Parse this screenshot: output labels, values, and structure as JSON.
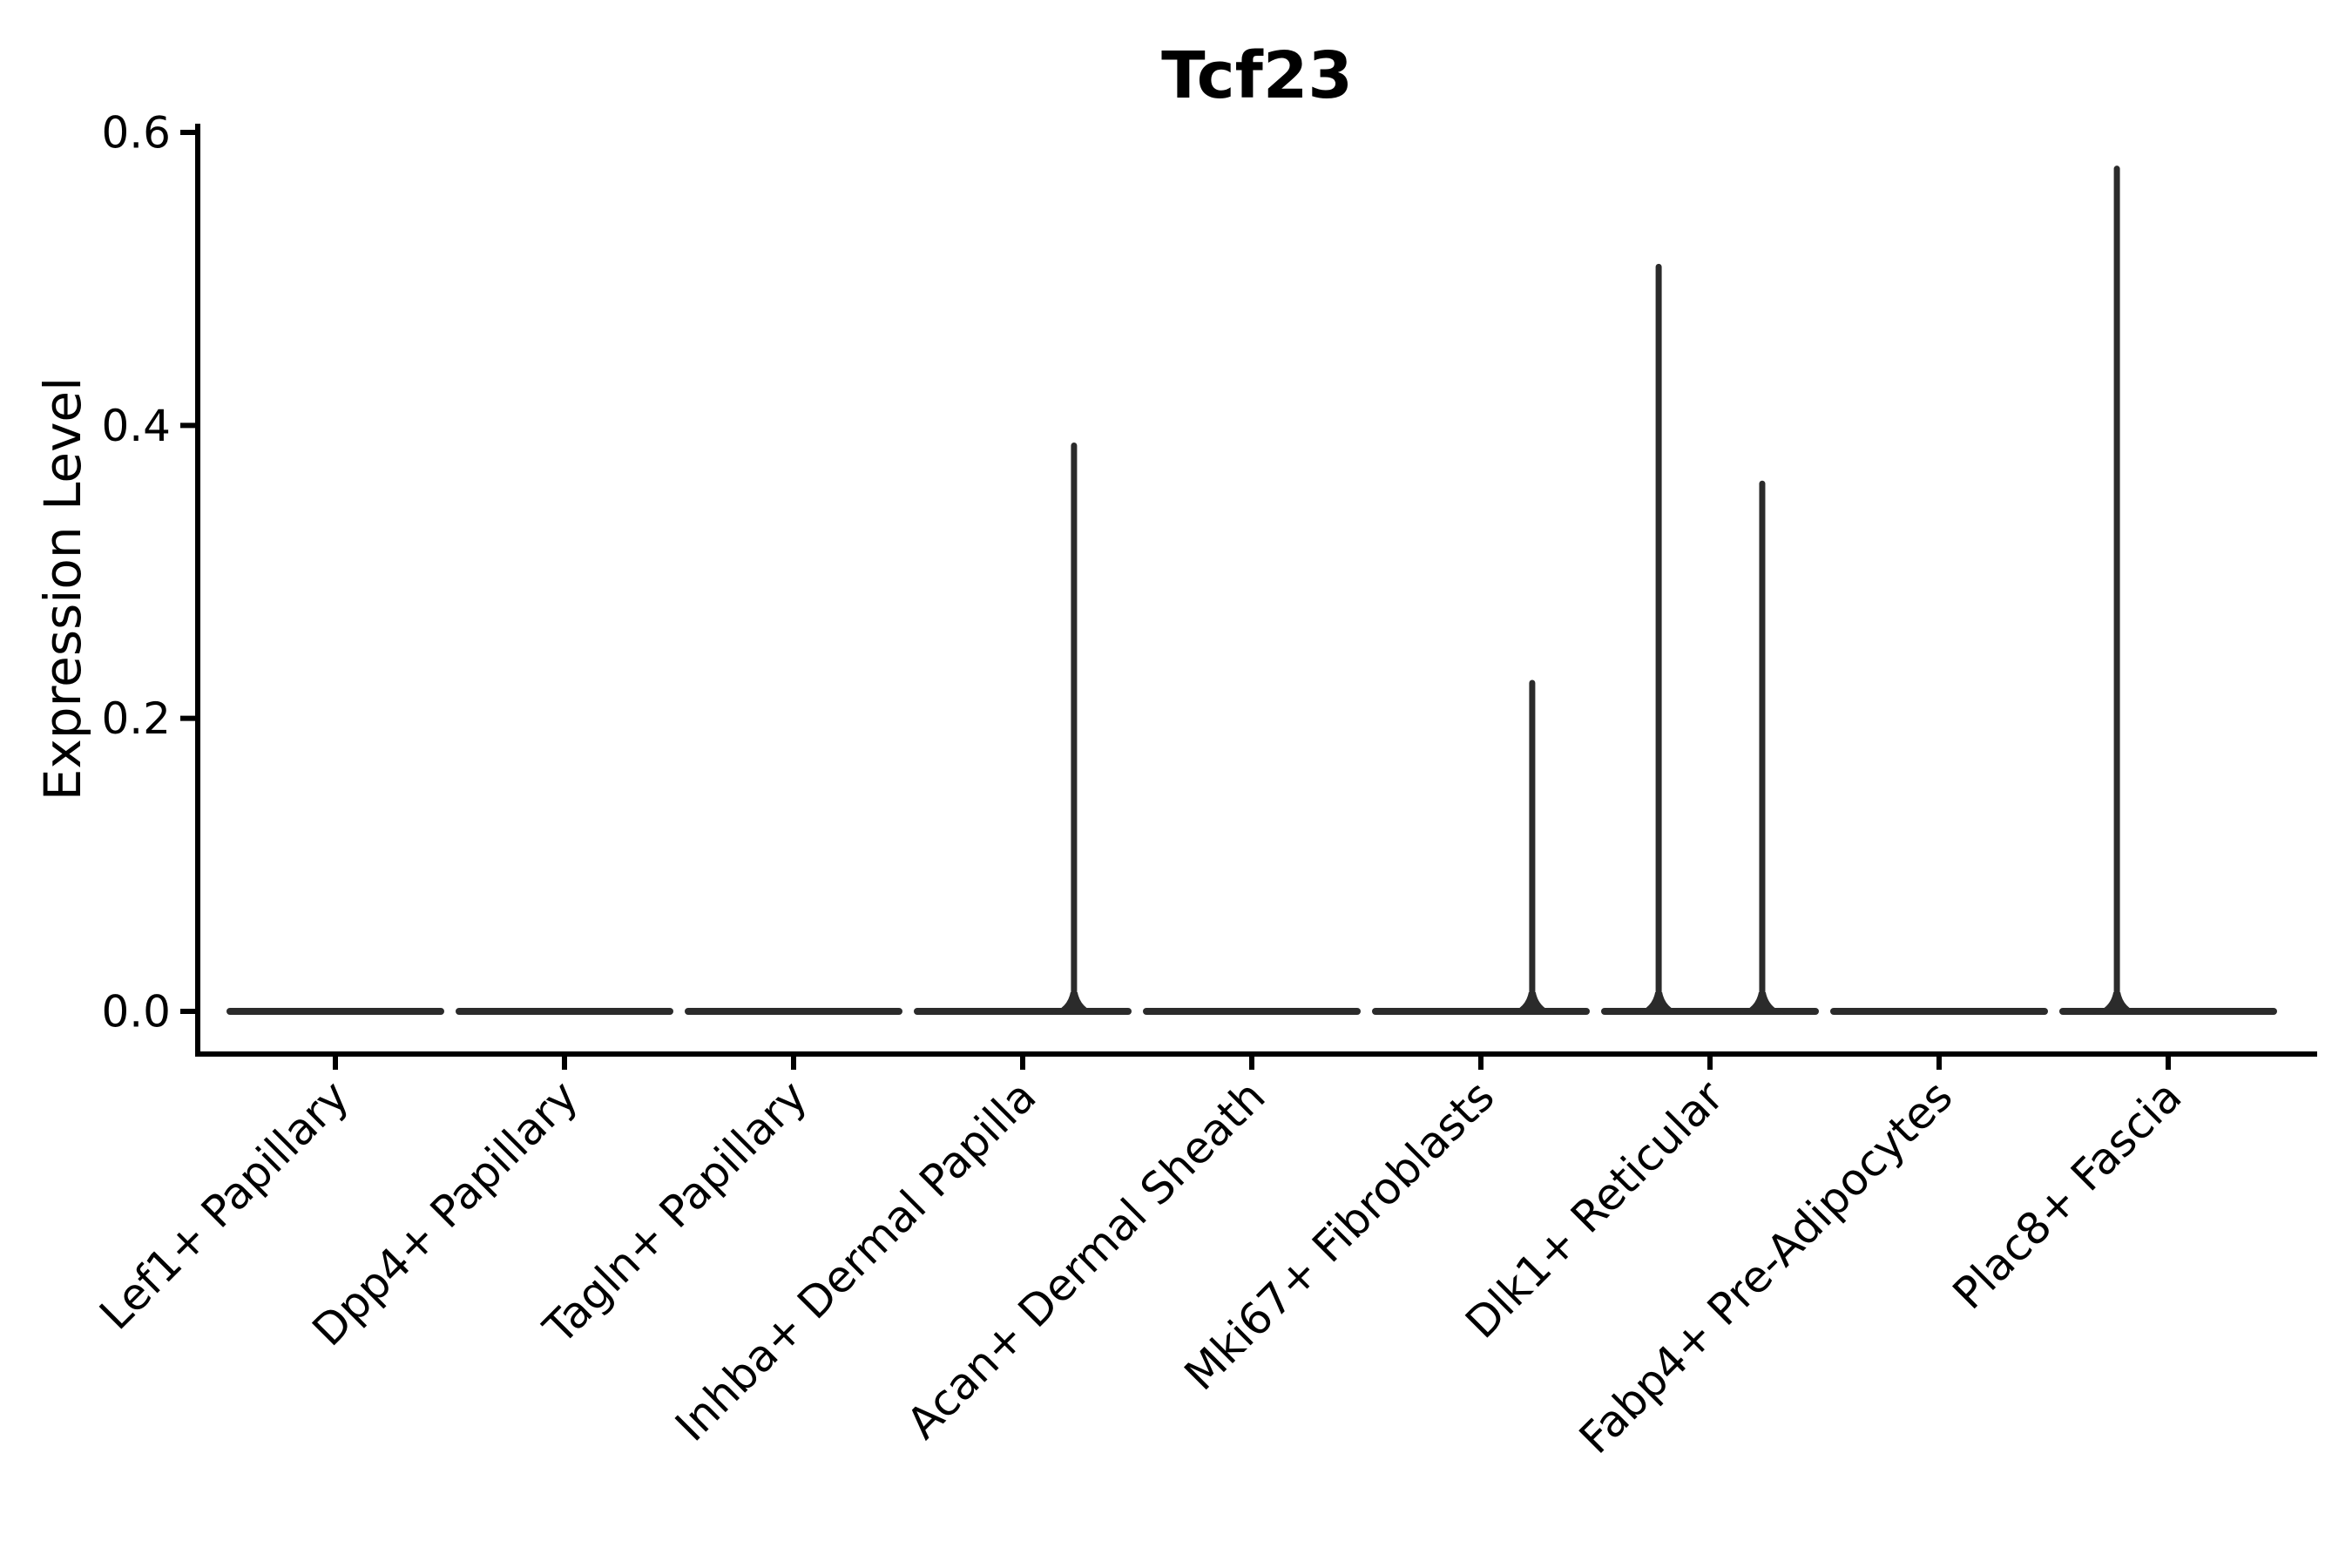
{
  "window": {
    "background": "#ffffff"
  },
  "chart_data": {
    "type": "violin",
    "title": "Tcf23",
    "xlabel": "",
    "ylabel": "Expression Level",
    "ylim": [
      0,
      0.6
    ],
    "yticks": [
      {
        "value": 0.0,
        "label": "0.0"
      },
      {
        "value": 0.2,
        "label": "0.2"
      },
      {
        "value": 0.4,
        "label": "0.4"
      },
      {
        "value": 0.6,
        "label": "0.6"
      }
    ],
    "grid": false,
    "legend": "none",
    "colors": {
      "axis": "#000000",
      "text": "#000000",
      "violin": "#2b2b2b"
    },
    "categories": [
      "Lef1+ Papillary",
      "Dpp4+ Papillary",
      "Tagln+ Papillary",
      "Inhba+ Dermal Papilla",
      "Acan+ Dermal Sheath",
      "Mki67+ Fibroblasts",
      "Dlk1+ Reticular",
      "Fabp4+ Pre-Adipocytes",
      "Plac8+ Fascia"
    ],
    "violins": [
      {
        "base_value": 0.0,
        "spikes": []
      },
      {
        "base_value": 0.0,
        "spikes": []
      },
      {
        "base_value": 0.0,
        "spikes": []
      },
      {
        "base_value": 0.0,
        "spikes": [
          {
            "offset_frac": 0.224,
            "max_value": 0.388
          }
        ]
      },
      {
        "base_value": 0.0,
        "spikes": []
      },
      {
        "base_value": 0.0,
        "spikes": [
          {
            "offset_frac": 0.224,
            "max_value": 0.226
          }
        ]
      },
      {
        "base_value": 0.0,
        "spikes": [
          {
            "offset_frac": -0.224,
            "max_value": 0.51
          },
          {
            "offset_frac": 0.228,
            "max_value": 0.362
          }
        ]
      },
      {
        "base_value": 0.0,
        "spikes": []
      },
      {
        "base_value": 0.0,
        "spikes": [
          {
            "offset_frac": -0.224,
            "max_value": 0.577
          }
        ]
      }
    ]
  }
}
